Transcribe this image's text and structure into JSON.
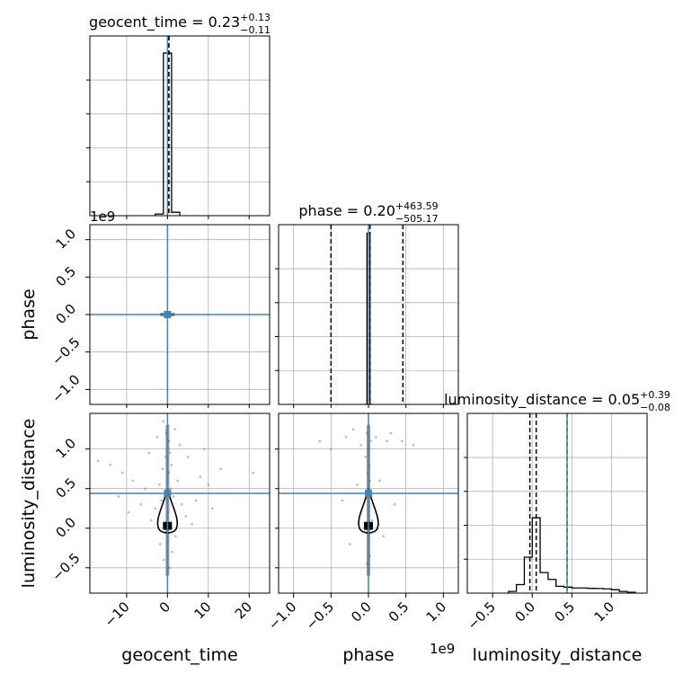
{
  "chart_data": {
    "type": "corner",
    "parameters": [
      "geocent_time",
      "phase",
      "luminosity_distance"
    ],
    "axis_labels": [
      "geocent_time",
      "phase",
      "luminosity_distance"
    ],
    "titles": [
      {
        "param": "geocent_time",
        "prefix": "geocent_time = ",
        "value": "0.23",
        "plus": "+0.13",
        "minus": "−0.11"
      },
      {
        "param": "phase",
        "prefix": "phase = ",
        "value": "0.20",
        "plus": "+463.59",
        "minus": "−505.17"
      },
      {
        "param": "luminosity_distance",
        "prefix": "luminosity_distance = ",
        "value": "0.05",
        "plus": "+0.39",
        "minus": "−0.08"
      }
    ],
    "ranges": {
      "geocent_time": [
        -19,
        25
      ],
      "phase": [
        -1200000000.0,
        1200000000.0
      ],
      "luminosity_distance": [
        -0.82,
        1.45
      ]
    },
    "ticks": {
      "geocent_time": [
        -10,
        0,
        10,
        20
      ],
      "phase": [
        -1.0,
        -0.5,
        0.0,
        0.5,
        1.0
      ],
      "luminosity_distance": [
        -0.5,
        0.0,
        0.5,
        1.0
      ]
    },
    "tick_labels": {
      "geocent_time": [
        "−10",
        "0",
        "10",
        "20"
      ],
      "phase": [
        "−1.0",
        "−0.5",
        "0.0",
        "0.5",
        "1.0"
      ],
      "luminosity_distance": [
        "−0.5",
        "0.0",
        "0.5",
        "1.0"
      ]
    },
    "phase_scale_factor": 1000000000.0,
    "offset_text": "1e9",
    "truths": {
      "geocent_time": 0.0,
      "phase": 0.0,
      "luminosity_distance": 0.44
    },
    "quantile_lines": {
      "geocent_time": [
        0.12,
        0.23,
        0.36
      ],
      "phase": [
        -500000000.0,
        20000000.0,
        460000000.0
      ],
      "luminosity_distance": [
        -0.03,
        0.05,
        0.44
      ]
    },
    "histograms": {
      "geocent_time": {
        "edges": [
          -3,
          -1,
          1,
          3
        ],
        "counts": [
          0.01,
          0.95,
          0.02
        ]
      },
      "phase": {
        "edges": [
          -60000000.0,
          -20000000.0,
          20000000.0,
          60000000.0
        ],
        "counts": [
          0.0,
          1.0,
          0.0
        ]
      },
      "luminosity_distance": {
        "edges": [
          -0.3,
          -0.2,
          -0.1,
          0.0,
          0.1,
          0.2,
          0.3,
          0.4,
          0.5,
          0.6,
          0.7,
          0.8,
          0.9,
          1.0,
          1.1,
          1.2,
          1.3
        ],
        "counts": [
          0.01,
          0.05,
          0.21,
          0.44,
          0.12,
          0.08,
          0.04,
          0.035,
          0.03,
          0.03,
          0.028,
          0.027,
          0.025,
          0.02,
          0.01,
          0.005
        ]
      }
    },
    "scatter_samples": {
      "geocent_time_vs_luminosity_distance": [
        [
          0.1,
          1.3
        ],
        [
          -0.3,
          1.2
        ],
        [
          0.4,
          1.1
        ],
        [
          0.2,
          1.0
        ],
        [
          -0.5,
          0.9
        ],
        [
          0.6,
          0.95
        ],
        [
          0.0,
          0.85
        ],
        [
          1.0,
          0.8
        ],
        [
          -1.2,
          0.75
        ],
        [
          0.3,
          0.7
        ],
        [
          2.5,
          0.6
        ],
        [
          -2.0,
          0.55
        ],
        [
          0.8,
          0.5
        ],
        [
          -0.6,
          0.45
        ],
        [
          1.5,
          0.4
        ],
        [
          -1.5,
          0.35
        ],
        [
          3.5,
          0.3
        ],
        [
          -3.0,
          0.25
        ],
        [
          0.2,
          0.2
        ],
        [
          4.5,
          0.15
        ],
        [
          -4.0,
          0.1
        ],
        [
          6.0,
          0.05
        ],
        [
          -5.5,
          0.5
        ],
        [
          8.0,
          0.65
        ],
        [
          -8.5,
          0.6
        ],
        [
          10.0,
          0.55
        ],
        [
          -11.0,
          0.7
        ],
        [
          13.0,
          0.75
        ],
        [
          -14.0,
          0.8
        ],
        [
          21.0,
          0.7
        ],
        [
          -17.0,
          0.85
        ],
        [
          2.0,
          -0.1
        ],
        [
          -1.8,
          -0.2
        ],
        [
          1.2,
          -0.3
        ],
        [
          -0.9,
          -0.4
        ],
        [
          0.5,
          -0.5
        ],
        [
          7.0,
          0.35
        ],
        [
          -6.5,
          0.3
        ],
        [
          11.0,
          0.25
        ],
        [
          -12.0,
          0.4
        ],
        [
          3.0,
          1.05
        ],
        [
          -2.5,
          1.15
        ],
        [
          1.8,
          1.25
        ],
        [
          -1.0,
          1.35
        ],
        [
          0.7,
          0.0
        ],
        [
          -0.4,
          -0.05
        ],
        [
          5.0,
          0.9
        ],
        [
          -4.5,
          0.95
        ],
        [
          9.0,
          1.0
        ],
        [
          -9.5,
          0.2
        ]
      ],
      "phase_vs_luminosity_distance": [
        [
          0.0,
          1.3
        ],
        [
          -20000000.0,
          1.2
        ],
        [
          30000000.0,
          1.1
        ],
        [
          0.0,
          1.0
        ],
        [
          -40000000.0,
          0.9
        ],
        [
          10000000.0,
          0.8
        ],
        [
          -10000000.0,
          0.7
        ],
        [
          20000000.0,
          0.6
        ],
        [
          0.0,
          0.5
        ],
        [
          -30000000.0,
          0.4
        ],
        [
          100000000.0,
          1.15
        ],
        [
          -100000000.0,
          1.05
        ],
        [
          250000000.0,
          1.1
        ],
        [
          -300000000.0,
          1.15
        ],
        [
          450000000.0,
          1.1
        ],
        [
          -500000000.0,
          1.0
        ],
        [
          300000000.0,
          1.2
        ],
        [
          -200000000.0,
          1.25
        ],
        [
          600000000.0,
          1.05
        ],
        [
          -650000000.0,
          1.1
        ],
        [
          150000000.0,
          0.6
        ],
        [
          -150000000.0,
          0.55
        ],
        [
          350000000.0,
          0.3
        ],
        [
          -350000000.0,
          0.35
        ],
        [
          50000000.0,
          0.1
        ],
        [
          -50000000.0,
          0.0
        ],
        [
          200000000.0,
          -0.1
        ],
        [
          -250000000.0,
          -0.2
        ],
        [
          20000000.0,
          -0.35
        ],
        [
          -20000000.0,
          -0.45
        ]
      ]
    },
    "contour_center": {
      "geocent_time": 0.0,
      "phase": 0.0,
      "luminosity_distance": 0.05
    },
    "colors": {
      "truth": "#4682b4",
      "hist": "#000000",
      "grid": "#b0b0b0",
      "samples": "#7f7f7f",
      "contour": "#000000"
    },
    "grid": true
  }
}
